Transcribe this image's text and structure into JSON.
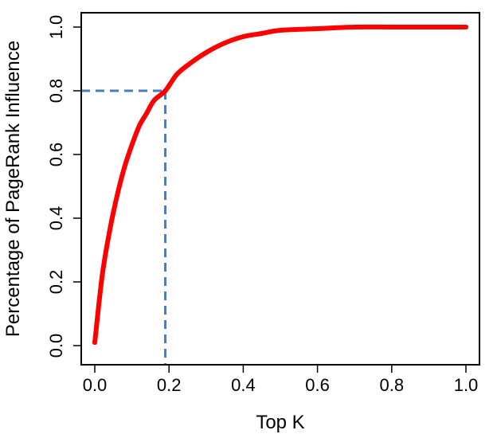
{
  "chart_data": {
    "type": "line",
    "title": "",
    "xlabel": "Top K",
    "ylabel": "Percentage of PageRank Influence",
    "xlim": [
      0.0,
      1.0
    ],
    "ylim": [
      0.0,
      1.0
    ],
    "grid": false,
    "x_ticks": [
      "0.0",
      "0.2",
      "0.4",
      "0.6",
      "0.8",
      "1.0"
    ],
    "y_ticks": [
      "0.0",
      "0.2",
      "0.4",
      "0.6",
      "0.8",
      "1.0"
    ],
    "series": [
      {
        "color": "#ff0000",
        "x": [
          0.0,
          0.02,
          0.04,
          0.06,
          0.08,
          0.1,
          0.12,
          0.14,
          0.16,
          0.19,
          0.22,
          0.25,
          0.3,
          0.35,
          0.4,
          0.45,
          0.5,
          0.6,
          0.7,
          0.8,
          0.9,
          1.0
        ],
        "y": [
          0.01,
          0.22,
          0.36,
          0.47,
          0.56,
          0.63,
          0.69,
          0.73,
          0.77,
          0.8,
          0.85,
          0.88,
          0.92,
          0.95,
          0.97,
          0.98,
          0.99,
          0.995,
          1.0,
          1.0,
          1.0,
          1.0
        ]
      }
    ],
    "reference_lines": {
      "color": "#4f7bb8",
      "style": "dashed",
      "x": 0.19,
      "y": 0.8
    }
  }
}
